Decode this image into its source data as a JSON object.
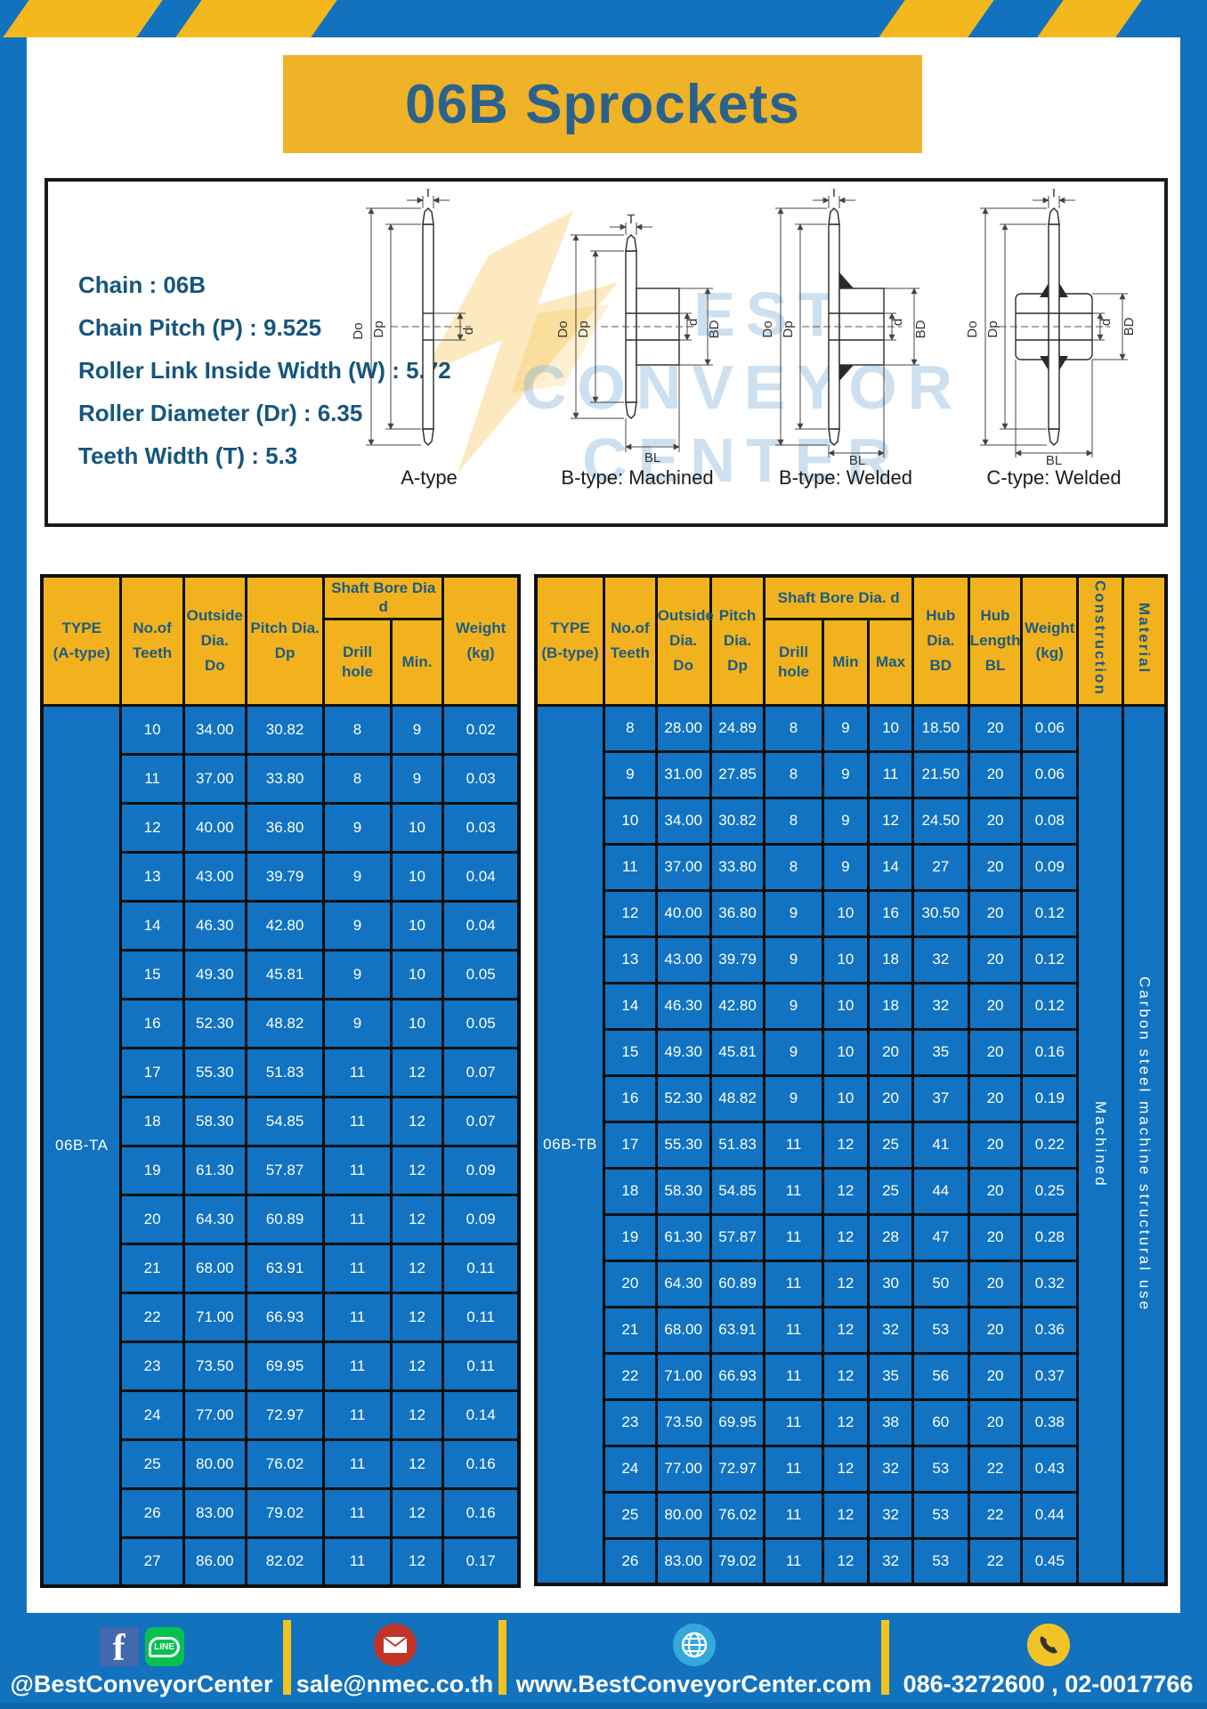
{
  "title": "06B Sprockets",
  "specs": {
    "lines": [
      "Chain  : 06B",
      "Chain Pitch (P)  :  9.525",
      "Roller Link Inside Width (W)  :  5.72",
      "Roller Diameter (Dr)  : 6.35",
      "Teeth Width (T)  :  5.3"
    ]
  },
  "diagram": {
    "labels": [
      "A-type",
      "B-type: Machined",
      "B-type: Welded",
      "C-type: Welded"
    ],
    "dims": {
      "T": "T",
      "Do": "Do",
      "Dp": "Dp",
      "d": "d",
      "BD": "BD",
      "BL": "BL"
    },
    "watermark": [
      "BEST",
      "CONVEYOR",
      "CENTER"
    ]
  },
  "table_a": {
    "type_header": [
      "TYPE",
      "(A-type)"
    ],
    "col_teeth": [
      "No.of",
      "Teeth"
    ],
    "col_outside": [
      "Outside",
      "Dia.",
      "Do"
    ],
    "col_pitch": [
      "Pitch Dia.",
      "Dp"
    ],
    "group_shaft": "Shaft Bore Dia d",
    "col_drill": "Drill hole",
    "col_min": "Min.",
    "col_weight": [
      "Weight",
      "(kg)"
    ],
    "type_label": "06B-TA",
    "rows": [
      [
        "10",
        "34.00",
        "30.82",
        "8",
        "9",
        "0.02"
      ],
      [
        "11",
        "37.00",
        "33.80",
        "8",
        "9",
        "0.03"
      ],
      [
        "12",
        "40.00",
        "36.80",
        "9",
        "10",
        "0.03"
      ],
      [
        "13",
        "43.00",
        "39.79",
        "9",
        "10",
        "0.04"
      ],
      [
        "14",
        "46.30",
        "42.80",
        "9",
        "10",
        "0.04"
      ],
      [
        "15",
        "49.30",
        "45.81",
        "9",
        "10",
        "0.05"
      ],
      [
        "16",
        "52.30",
        "48.82",
        "9",
        "10",
        "0.05"
      ],
      [
        "17",
        "55.30",
        "51.83",
        "11",
        "12",
        "0.07"
      ],
      [
        "18",
        "58.30",
        "54.85",
        "11",
        "12",
        "0.07"
      ],
      [
        "19",
        "61.30",
        "57.87",
        "11",
        "12",
        "0.09"
      ],
      [
        "20",
        "64.30",
        "60.89",
        "11",
        "12",
        "0.09"
      ],
      [
        "21",
        "68.00",
        "63.91",
        "11",
        "12",
        "0.11"
      ],
      [
        "22",
        "71.00",
        "66.93",
        "11",
        "12",
        "0.11"
      ],
      [
        "23",
        "73.50",
        "69.95",
        "11",
        "12",
        "0.11"
      ],
      [
        "24",
        "77.00",
        "72.97",
        "11",
        "12",
        "0.14"
      ],
      [
        "25",
        "80.00",
        "76.02",
        "11",
        "12",
        "0.16"
      ],
      [
        "26",
        "83.00",
        "79.02",
        "11",
        "12",
        "0.16"
      ],
      [
        "27",
        "86.00",
        "82.02",
        "11",
        "12",
        "0.17"
      ]
    ]
  },
  "table_b": {
    "type_header": [
      "TYPE",
      "(B-type)"
    ],
    "col_teeth": [
      "No.of",
      "Teeth"
    ],
    "col_outside": [
      "Outside",
      "Dia.",
      "Do"
    ],
    "col_pitch": [
      "Pitch",
      "Dia.",
      "Dp"
    ],
    "group_shaft": "Shaft Bore Dia.  d",
    "col_drill": "Drill hole",
    "col_min": "Min",
    "col_max": "Max",
    "col_hub_dia": [
      "Hub",
      "Dia.",
      "BD"
    ],
    "col_hub_len": [
      "Hub",
      "Length",
      "BL"
    ],
    "col_weight": [
      "Weight",
      "(kg)"
    ],
    "col_construction": "Construction",
    "col_material": "Material",
    "type_label": "06B-TB",
    "construction_value": "Machined",
    "material_value": "Carbon  steel  machine  structural  use",
    "rows": [
      [
        "8",
        "28.00",
        "24.89",
        "8",
        "9",
        "10",
        "18.50",
        "20",
        "0.06"
      ],
      [
        "9",
        "31.00",
        "27.85",
        "8",
        "9",
        "11",
        "21.50",
        "20",
        "0.06"
      ],
      [
        "10",
        "34.00",
        "30.82",
        "8",
        "9",
        "12",
        "24.50",
        "20",
        "0.08"
      ],
      [
        "11",
        "37.00",
        "33.80",
        "8",
        "9",
        "14",
        "27",
        "20",
        "0.09"
      ],
      [
        "12",
        "40.00",
        "36.80",
        "9",
        "10",
        "16",
        "30.50",
        "20",
        "0.12"
      ],
      [
        "13",
        "43.00",
        "39.79",
        "9",
        "10",
        "18",
        "32",
        "20",
        "0.12"
      ],
      [
        "14",
        "46.30",
        "42.80",
        "9",
        "10",
        "18",
        "32",
        "20",
        "0.12"
      ],
      [
        "15",
        "49.30",
        "45.81",
        "9",
        "10",
        "20",
        "35",
        "20",
        "0.16"
      ],
      [
        "16",
        "52.30",
        "48.82",
        "9",
        "10",
        "20",
        "37",
        "20",
        "0.19"
      ],
      [
        "17",
        "55.30",
        "51.83",
        "11",
        "12",
        "25",
        "41",
        "20",
        "0.22"
      ],
      [
        "18",
        "58.30",
        "54.85",
        "11",
        "12",
        "25",
        "44",
        "20",
        "0.25"
      ],
      [
        "19",
        "61.30",
        "57.87",
        "11",
        "12",
        "28",
        "47",
        "20",
        "0.28"
      ],
      [
        "20",
        "64.30",
        "60.89",
        "11",
        "12",
        "30",
        "50",
        "20",
        "0.32"
      ],
      [
        "21",
        "68.00",
        "63.91",
        "11",
        "12",
        "32",
        "53",
        "20",
        "0.36"
      ],
      [
        "22",
        "71.00",
        "66.93",
        "11",
        "12",
        "35",
        "56",
        "20",
        "0.37"
      ],
      [
        "23",
        "73.50",
        "69.95",
        "11",
        "12",
        "38",
        "60",
        "20",
        "0.38"
      ],
      [
        "24",
        "77.00",
        "72.97",
        "11",
        "12",
        "32",
        "53",
        "22",
        "0.43"
      ],
      [
        "25",
        "80.00",
        "76.02",
        "11",
        "12",
        "32",
        "53",
        "22",
        "0.44"
      ],
      [
        "26",
        "83.00",
        "79.02",
        "11",
        "12",
        "32",
        "53",
        "22",
        "0.45"
      ]
    ]
  },
  "footer": {
    "facebook_letter": "f",
    "line_badge": "LINE",
    "social_label": "@BestConveyorCenter",
    "email": "sale@nmec.co.th",
    "website": "www.BestConveyorCenter.com",
    "phone": "086-3272600 , 02-0017766"
  },
  "colors": {
    "frame_blue": "#1272BE",
    "accent_yellow": "#F2B41E",
    "cell_blue": "#1173C1",
    "header_text": "#1D5C80",
    "title_text": "#2B628C"
  }
}
